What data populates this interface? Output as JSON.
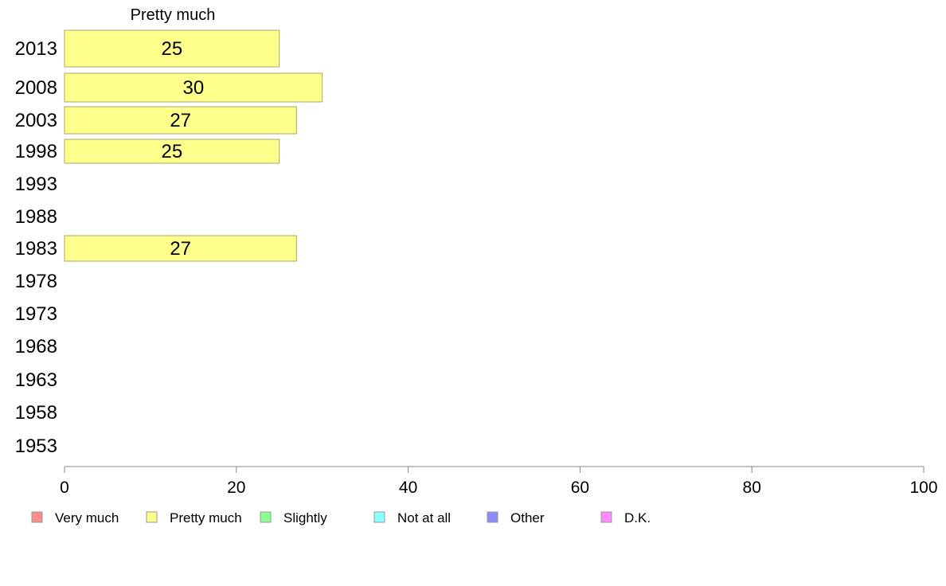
{
  "chart_data": {
    "type": "bar",
    "orientation": "horizontal",
    "title": "Pretty much",
    "categories": [
      "2013",
      "2008",
      "2003",
      "1998",
      "1993",
      "1988",
      "1983",
      "1978",
      "1973",
      "1968",
      "1963",
      "1958",
      "1953"
    ],
    "series": [
      {
        "name": "Pretty much",
        "values": [
          25,
          30,
          27,
          25,
          null,
          null,
          27,
          null,
          null,
          null,
          null,
          null,
          null
        ]
      }
    ],
    "xlim": [
      0,
      100
    ],
    "xticks": [
      0,
      20,
      40,
      60,
      80,
      100
    ],
    "grid": false,
    "legend": {
      "placement": "bottom",
      "entries": [
        {
          "label": "Very much",
          "color": "#ff8c8c"
        },
        {
          "label": "Pretty much",
          "color": "#ffff8c"
        },
        {
          "label": "Slightly",
          "color": "#8cff8c"
        },
        {
          "label": "Not at all",
          "color": "#8cffff"
        },
        {
          "label": "Other",
          "color": "#8c8cff"
        },
        {
          "label": "D.K.",
          "color": "#ff8cff"
        }
      ]
    },
    "bar_color": "#ffff8c",
    "bar_stroke": "#a8a86a",
    "axis_color": "#888888"
  }
}
